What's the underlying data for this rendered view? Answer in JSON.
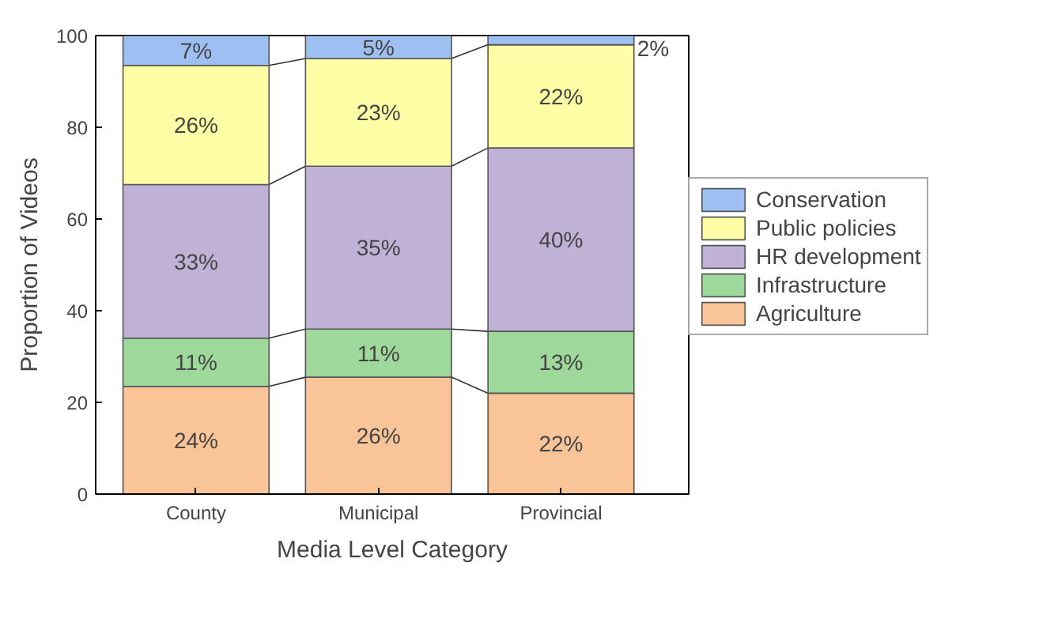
{
  "chart_data": {
    "type": "bar",
    "stacked": true,
    "xlabel": "Media Level Category",
    "ylabel": "Proportion of Videos",
    "categories": [
      "County",
      "Municipal",
      "Provincial"
    ],
    "series": [
      {
        "name": "Agriculture",
        "color": "#f9c497",
        "values": [
          23.5,
          25.5,
          22
        ],
        "value_labels": [
          "24%",
          "26%",
          "22%"
        ]
      },
      {
        "name": "Infrastructure",
        "color": "#9ed89a",
        "values": [
          10.5,
          10.5,
          13.5
        ],
        "value_labels": [
          "11%",
          "11%",
          "13%"
        ]
      },
      {
        "name": "HR development",
        "color": "#c0b2d6",
        "values": [
          33.5,
          35.5,
          40
        ],
        "value_labels": [
          "33%",
          "35%",
          "40%"
        ]
      },
      {
        "name": "Public policies",
        "color": "#fefea6",
        "values": [
          26,
          23.5,
          22.5
        ],
        "value_labels": [
          "26%",
          "23%",
          "22%"
        ]
      },
      {
        "name": "Conservation",
        "color": "#9dbff2",
        "values": [
          6.5,
          5,
          2
        ],
        "value_labels": [
          "7%",
          "5%",
          "2%"
        ]
      }
    ],
    "ylim": [
      0,
      100
    ],
    "yticks": [
      0,
      20,
      40,
      60,
      80,
      100
    ],
    "grid": false,
    "legend": "right"
  }
}
